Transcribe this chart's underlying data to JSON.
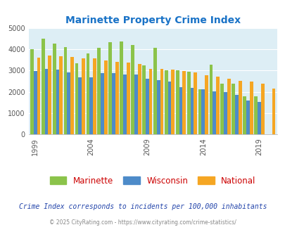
{
  "title": "Marinette Property Crime Index",
  "years": [
    1999,
    2000,
    2001,
    2002,
    2003,
    2004,
    2005,
    2006,
    2007,
    2008,
    2009,
    2010,
    2011,
    2012,
    2013,
    2014,
    2015,
    2016,
    2017,
    2018,
    2019,
    2020
  ],
  "marinette": [
    4000,
    4500,
    4250,
    4100,
    3350,
    3800,
    4080,
    4340,
    4360,
    4200,
    3230,
    4080,
    3020,
    3000,
    2950,
    2130,
    3280,
    2380,
    2400,
    1780,
    1780,
    0
  ],
  "wisconsin": [
    2980,
    3090,
    3050,
    2920,
    2680,
    2680,
    2870,
    2870,
    2810,
    2800,
    2620,
    2560,
    2490,
    2230,
    2200,
    2120,
    2020,
    1980,
    1860,
    1600,
    1520,
    0
  ],
  "national": [
    3600,
    3700,
    3660,
    3620,
    3560,
    3560,
    3460,
    3420,
    3360,
    3310,
    3090,
    3060,
    3030,
    2990,
    2900,
    2790,
    2720,
    2600,
    2520,
    2470,
    2380,
    2140
  ],
  "bar_colors": {
    "marinette": "#8bc34a",
    "wisconsin": "#4d8bc9",
    "national": "#f5a623"
  },
  "background_color": "#ddeef5",
  "ylim": [
    0,
    5000
  ],
  "yticks": [
    0,
    1000,
    2000,
    3000,
    4000,
    5000
  ],
  "xtick_labels": [
    "1999",
    "2004",
    "2009",
    "2014",
    "2019"
  ],
  "xtick_positions": [
    1999,
    2004,
    2009,
    2014,
    2019
  ],
  "footnote1": "Crime Index corresponds to incidents per 100,000 inhabitants",
  "footnote2": "© 2025 CityRating.com - https://www.cityrating.com/crime-statistics/",
  "legend_labels": [
    "Marinette",
    "Wisconsin",
    "National"
  ],
  "grid_color": "#ffffff",
  "title_color": "#1a73c7",
  "legend_text_color": "#cc0000",
  "footnote1_color": "#2244aa",
  "footnote2_color": "#888888"
}
